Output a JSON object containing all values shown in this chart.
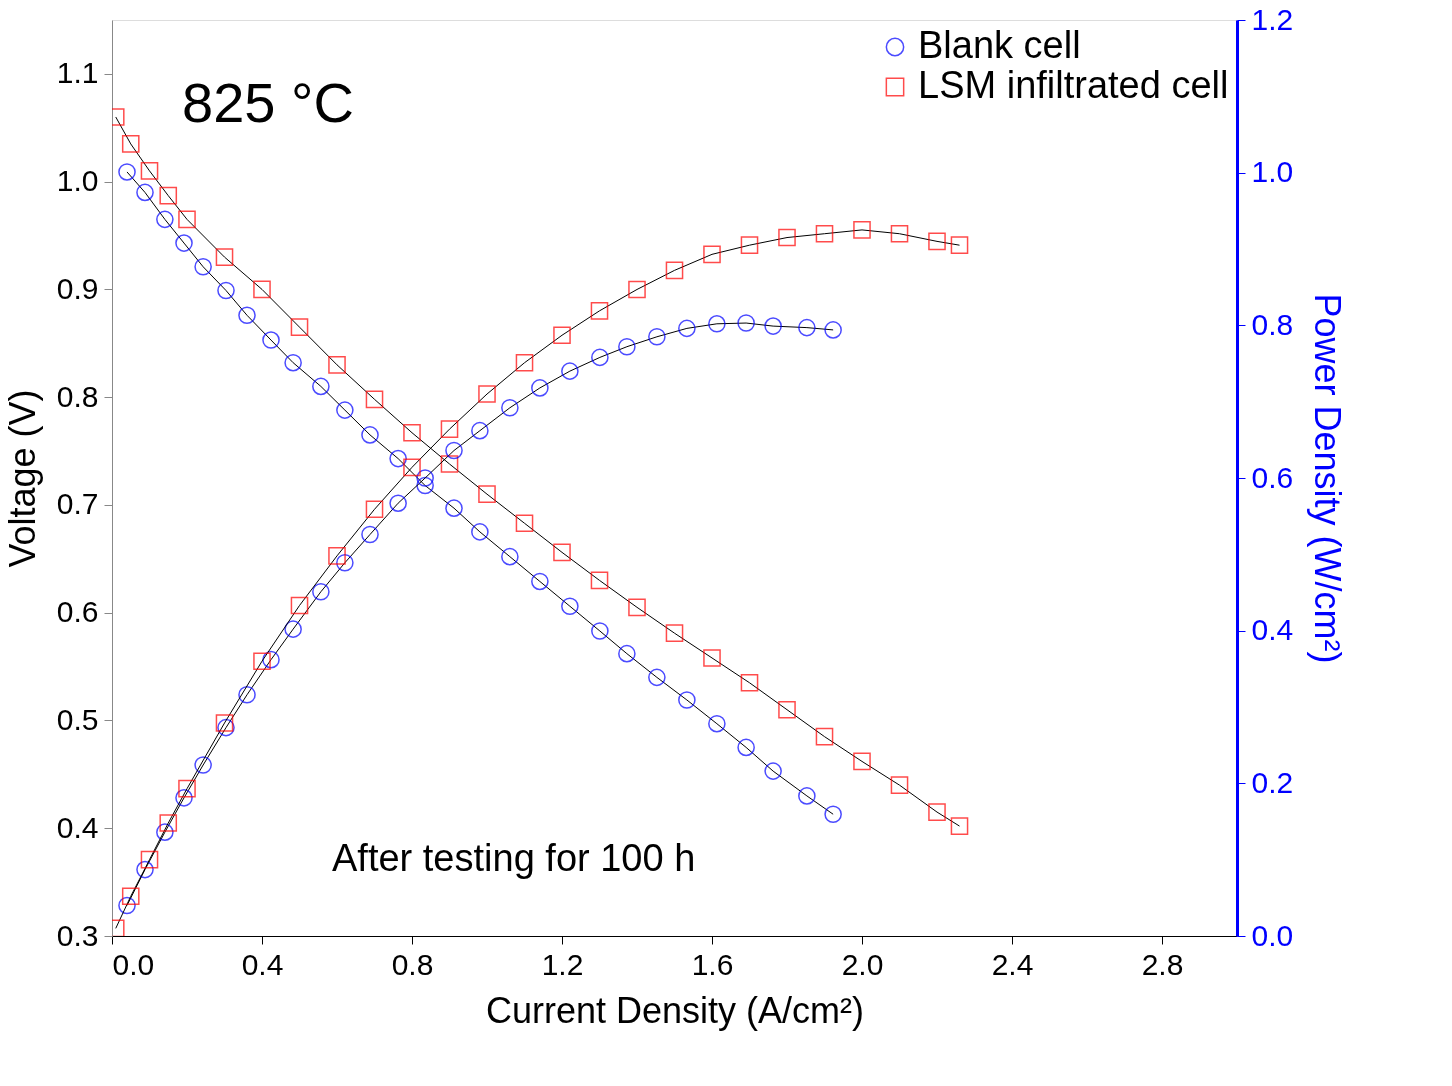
{
  "chart_data": {
    "type": "line",
    "xlabel": "Current Density (A/cm²)",
    "ylabel": "Voltage (V)",
    "y2label": "Power Density (W/cm²)",
    "xlim": [
      0,
      3
    ],
    "xticks": [
      {
        "value": 0,
        "label": "0.0"
      },
      0.4,
      0.8,
      1.2,
      1.6,
      {
        "value": 2,
        "label": "2.0"
      },
      2.4,
      2.8
    ],
    "ylim": [
      0.3,
      1.15
    ],
    "yticks": [
      0.3,
      0.4,
      0.5,
      0.6,
      0.7,
      0.8,
      0.9,
      {
        "value": 1,
        "label": "1.0"
      },
      1.1
    ],
    "y2lim": [
      0,
      1.2
    ],
    "y2ticks": [
      {
        "value": 0,
        "label": "0.0"
      },
      0.2,
      0.4,
      0.6,
      0.8,
      {
        "value": 1,
        "label": "1.0"
      },
      1.2
    ],
    "grid": false,
    "legend": "top right",
    "line_style": "solid",
    "annotations": [
      "825 °C",
      "After testing for 100 h"
    ],
    "series": [
      {
        "name": "Blank cell",
        "color": "#0000ff",
        "marker": "circle",
        "x": [
          0.04,
          0.088,
          0.141,
          0.192,
          0.243,
          0.304,
          0.36,
          0.424,
          0.483,
          0.557,
          0.621,
          0.688,
          0.763,
          0.835,
          0.912,
          0.981,
          1.061,
          1.141,
          1.221,
          1.301,
          1.373,
          1.453,
          1.533,
          1.613,
          1.691,
          1.763,
          1.853,
          1.923
        ],
        "values": [
          1.009,
          0.99,
          0.965,
          0.943,
          0.921,
          0.899,
          0.876,
          0.853,
          0.832,
          0.81,
          0.788,
          0.765,
          0.743,
          0.718,
          0.697,
          0.675,
          0.652,
          0.629,
          0.606,
          0.583,
          0.562,
          0.54,
          0.519,
          0.497,
          0.475,
          0.453,
          0.43,
          0.413
        ]
      },
      {
        "name": "LSM infiltrated cell",
        "color": "#ff0000",
        "marker": "square",
        "x": [
          0.01,
          0.05,
          0.1,
          0.15,
          0.2,
          0.3,
          0.4,
          0.5,
          0.6,
          0.7,
          0.8,
          0.9,
          1.0,
          1.1,
          1.2,
          1.3,
          1.4,
          1.5,
          1.6,
          1.7,
          1.8,
          1.9,
          2.0,
          2.1,
          2.2,
          2.26
        ],
        "values": [
          1.06,
          1.035,
          1.01,
          0.987,
          0.965,
          0.93,
          0.9,
          0.865,
          0.83,
          0.798,
          0.767,
          0.738,
          0.71,
          0.683,
          0.656,
          0.63,
          0.605,
          0.581,
          0.558,
          0.535,
          0.51,
          0.485,
          0.462,
          0.44,
          0.415,
          0.402
        ]
      },
      {
        "axis": "y2",
        "color": "#0000ff",
        "marker": "circle",
        "x": [
          0.04,
          0.088,
          0.141,
          0.192,
          0.243,
          0.304,
          0.36,
          0.424,
          0.483,
          0.557,
          0.621,
          0.688,
          0.763,
          0.835,
          0.912,
          0.981,
          1.061,
          1.141,
          1.221,
          1.301,
          1.373,
          1.453,
          1.533,
          1.613,
          1.691,
          1.763,
          1.853,
          1.923
        ],
        "values": [
          0.04,
          0.087,
          0.136,
          0.181,
          0.224,
          0.273,
          0.316,
          0.362,
          0.402,
          0.451,
          0.489,
          0.526,
          0.567,
          0.6,
          0.636,
          0.662,
          0.692,
          0.718,
          0.74,
          0.758,
          0.772,
          0.785,
          0.796,
          0.802,
          0.803,
          0.799,
          0.797,
          0.794
        ]
      },
      {
        "axis": "y2",
        "color": "#ff0000",
        "marker": "square",
        "x": [
          0.01,
          0.05,
          0.1,
          0.15,
          0.2,
          0.3,
          0.4,
          0.5,
          0.6,
          0.7,
          0.8,
          0.9,
          1.0,
          1.1,
          1.2,
          1.3,
          1.4,
          1.5,
          1.6,
          1.7,
          1.8,
          1.9,
          2.0,
          2.1,
          2.2,
          2.26
        ],
        "values": [
          0.01,
          0.052,
          0.1,
          0.148,
          0.193,
          0.279,
          0.36,
          0.433,
          0.498,
          0.559,
          0.614,
          0.664,
          0.71,
          0.751,
          0.787,
          0.819,
          0.847,
          0.872,
          0.893,
          0.905,
          0.915,
          0.92,
          0.925,
          0.92,
          0.91,
          0.905
        ]
      }
    ]
  }
}
